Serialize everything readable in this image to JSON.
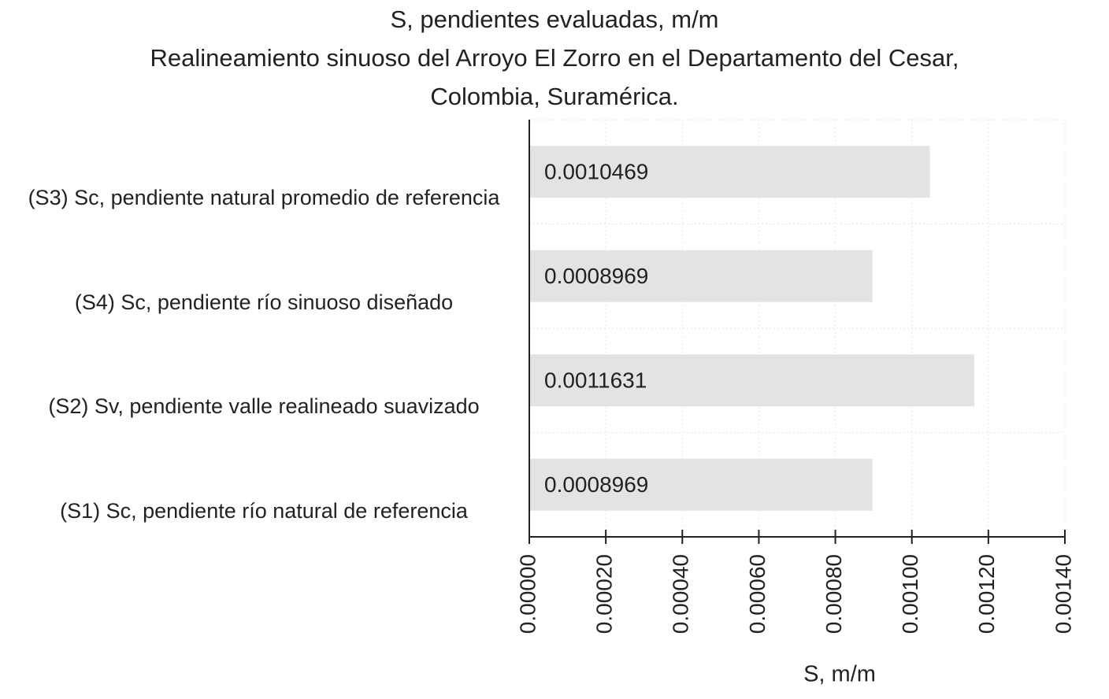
{
  "chart_data": {
    "type": "barh",
    "title": "S, pendientes evaluadas, m/m",
    "subtitle": "Realineamiento sinuoso del Arroyo El Zorro en el Departamento del Cesar, Colombia, Suramérica.",
    "x_label": "S, m/m",
    "categories": [
      "(S3) Sc, pendiente natural promedio de referencia",
      "(S4) Sc, pendiente río sinuoso diseñado",
      "(S2) Sv, pendiente valle realineado suavizado",
      "(S1) Sc, pendiente río natural de referencia"
    ],
    "values": [
      0.0010469,
      0.0008969,
      0.0011631,
      0.0008969
    ],
    "color": "#e3e3e3",
    "xlim": [
      0,
      0.0014
    ],
    "xticks": [
      {
        "value": 0,
        "label": "0.00000"
      },
      {
        "value": 0.0002,
        "label": "0.00020"
      },
      {
        "value": 0.0004,
        "label": "0.00040"
      },
      {
        "value": 0.0006,
        "label": "0.00060"
      },
      {
        "value": 0.0008,
        "label": "0.00080"
      },
      {
        "value": 0.001,
        "label": "0.00100"
      },
      {
        "value": 0.0012,
        "label": "0.00120"
      },
      {
        "value": 0.0014,
        "label": "0.00140"
      }
    ],
    "grid": true
  }
}
